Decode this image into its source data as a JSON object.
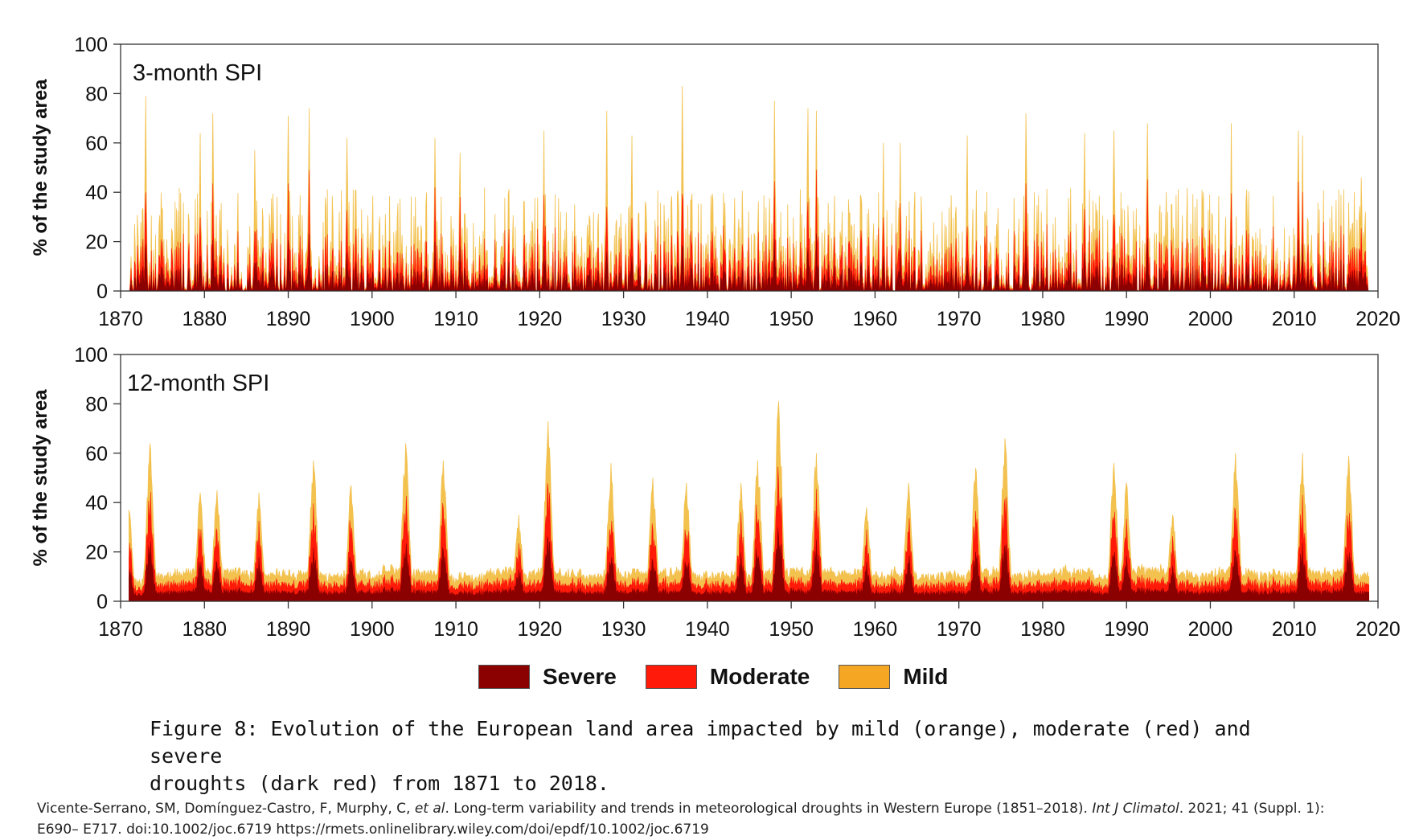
{
  "chart_data": [
    {
      "type": "area",
      "panel_label": "3-month SPI",
      "ylabel": "% of the study area",
      "xlim": [
        1870,
        2020
      ],
      "ylim": [
        0,
        100
      ],
      "xticks": [
        1870,
        1880,
        1890,
        1900,
        1910,
        1920,
        1930,
        1940,
        1950,
        1960,
        1970,
        1980,
        1990,
        2000,
        2010,
        2020
      ],
      "yticks": [
        0,
        20,
        40,
        60,
        80,
        100
      ],
      "series": [
        {
          "name": "Severe",
          "color": "#8B0000"
        },
        {
          "name": "Moderate",
          "color": "#FF1A0A"
        },
        {
          "name": "Mild",
          "color": "#F2C14E"
        }
      ],
      "x_range": [
        1871,
        2018
      ],
      "peaks": [
        {
          "x": 1873.0,
          "y": 79
        },
        {
          "x": 1879.5,
          "y": 64
        },
        {
          "x": 1881.0,
          "y": 72
        },
        {
          "x": 1886.0,
          "y": 57
        },
        {
          "x": 1890.0,
          "y": 71
        },
        {
          "x": 1892.5,
          "y": 74
        },
        {
          "x": 1897.0,
          "y": 62
        },
        {
          "x": 1907.5,
          "y": 62
        },
        {
          "x": 1910.5,
          "y": 56
        },
        {
          "x": 1920.5,
          "y": 65
        },
        {
          "x": 1928.0,
          "y": 73
        },
        {
          "x": 1931.0,
          "y": 63
        },
        {
          "x": 1937.0,
          "y": 83
        },
        {
          "x": 1948.0,
          "y": 77
        },
        {
          "x": 1952.0,
          "y": 74
        },
        {
          "x": 1953.0,
          "y": 73
        },
        {
          "x": 1961.0,
          "y": 60
        },
        {
          "x": 1963.0,
          "y": 60
        },
        {
          "x": 1971.0,
          "y": 63
        },
        {
          "x": 1978.0,
          "y": 72
        },
        {
          "x": 1985.0,
          "y": 64
        },
        {
          "x": 1988.5,
          "y": 65
        },
        {
          "x": 1992.5,
          "y": 68
        },
        {
          "x": 2002.5,
          "y": 68
        },
        {
          "x": 2010.5,
          "y": 65
        },
        {
          "x": 2011.0,
          "y": 63
        },
        {
          "x": 2018.0,
          "y": 46
        }
      ]
    },
    {
      "type": "area",
      "panel_label": "12-month SPI",
      "ylabel": "% of the study area",
      "xlim": [
        1870,
        2020
      ],
      "ylim": [
        0,
        100
      ],
      "xticks": [
        1870,
        1880,
        1890,
        1900,
        1910,
        1920,
        1930,
        1940,
        1950,
        1960,
        1970,
        1980,
        1990,
        2000,
        2010,
        2020
      ],
      "yticks": [
        0,
        20,
        40,
        60,
        80,
        100
      ],
      "series": [
        {
          "name": "Severe",
          "color": "#8B0000"
        },
        {
          "name": "Moderate",
          "color": "#FF1A0A"
        },
        {
          "name": "Mild",
          "color": "#F2C14E"
        }
      ],
      "x_range": [
        1871,
        2018
      ],
      "peaks": [
        {
          "x": 1871.0,
          "y": 37
        },
        {
          "x": 1873.5,
          "y": 64
        },
        {
          "x": 1879.5,
          "y": 44
        },
        {
          "x": 1881.5,
          "y": 45
        },
        {
          "x": 1886.5,
          "y": 44
        },
        {
          "x": 1893.0,
          "y": 57
        },
        {
          "x": 1897.5,
          "y": 47
        },
        {
          "x": 1904.0,
          "y": 64
        },
        {
          "x": 1908.5,
          "y": 57
        },
        {
          "x": 1917.5,
          "y": 35
        },
        {
          "x": 1921.0,
          "y": 73
        },
        {
          "x": 1928.5,
          "y": 56
        },
        {
          "x": 1933.5,
          "y": 50
        },
        {
          "x": 1937.5,
          "y": 48
        },
        {
          "x": 1944.0,
          "y": 48
        },
        {
          "x": 1946.0,
          "y": 57
        },
        {
          "x": 1948.5,
          "y": 81
        },
        {
          "x": 1953.0,
          "y": 60
        },
        {
          "x": 1959.0,
          "y": 38
        },
        {
          "x": 1964.0,
          "y": 48
        },
        {
          "x": 1972.0,
          "y": 54
        },
        {
          "x": 1975.5,
          "y": 66
        },
        {
          "x": 1988.5,
          "y": 56
        },
        {
          "x": 1990.0,
          "y": 48
        },
        {
          "x": 1995.5,
          "y": 35
        },
        {
          "x": 2003.0,
          "y": 60
        },
        {
          "x": 2011.0,
          "y": 60
        },
        {
          "x": 2016.5,
          "y": 59
        }
      ]
    }
  ],
  "legend": {
    "items": [
      {
        "label": "Severe",
        "color": "#8B0000"
      },
      {
        "label": "Moderate",
        "color": "#FF1A0A"
      },
      {
        "label": "Mild",
        "color": "#F5A623"
      }
    ]
  },
  "caption": {
    "line1": "Figure 8: Evolution of the European land area impacted by mild (orange), moderate (red) and severe",
    "line2": "droughts (dark red) from 1871 to 2018."
  },
  "citation": {
    "authors": "Vicente-Serrano, SM, Domínguez-Castro, F, Murphy, C, ",
    "etal": "et al",
    "title": ". Long-term variability and trends in meteorological droughts in Western Europe (1851–2018). ",
    "journal": "Int J Climatol",
    "details": ". 2021; 41 (Suppl. 1):",
    "line2": "E690– E717. doi:10.1002/joc.6719",
    "url": "https://rmets.onlinelibrary.wiley.com/doi/epdf/10.1002/joc.6719"
  }
}
